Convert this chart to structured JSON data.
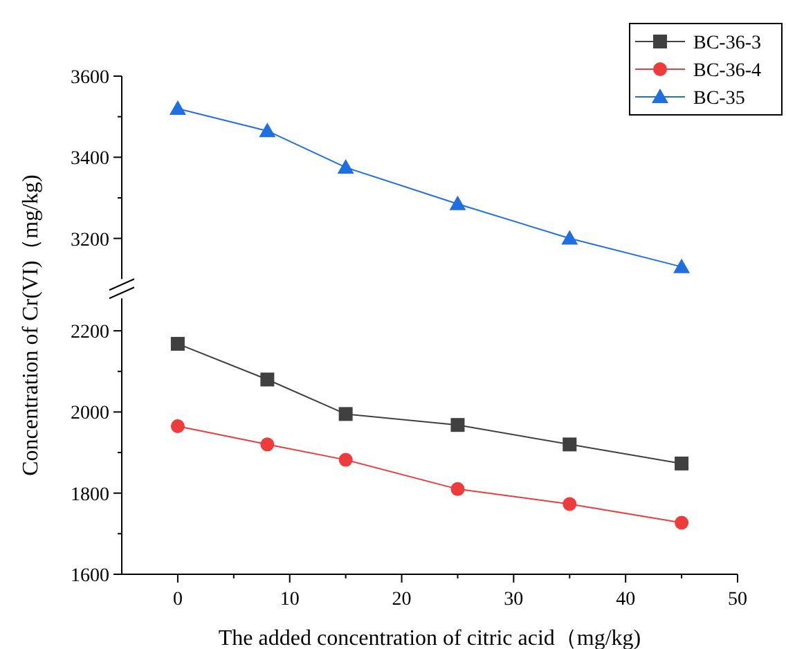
{
  "chart_data": [
    {
      "type": "line",
      "ylabel": "Concentration of Cr(VI)（mg/kg)",
      "x": [
        0,
        8,
        15,
        25,
        35,
        45
      ],
      "xlim": [
        -5,
        50
      ],
      "ylim": [
        3100,
        3600
      ],
      "yticks": [
        3200,
        {
          "value": 3300,
          "label": null
        },
        3400,
        {
          "value": 3500,
          "label": null
        },
        3600
      ],
      "tick_labels": "y",
      "marker": "triangle",
      "legend": "top right",
      "series": [
        {
          "name": "BC-35",
          "color": "#1f6fe0",
          "values": [
            3520,
            3465,
            3375,
            3285,
            3200,
            3130
          ]
        }
      ]
    },
    {
      "type": "line",
      "xlabel": "The added concentration of citric acid（mg/kg)",
      "x": [
        0,
        8,
        15,
        25,
        35,
        45
      ],
      "xlim": [
        -5,
        50
      ],
      "xticks": [
        0,
        {
          "value": 5,
          "label": null
        },
        10,
        {
          "value": 15,
          "label": null
        },
        20,
        {
          "value": 25,
          "label": null
        },
        30,
        {
          "value": 35,
          "label": null
        },
        40,
        {
          "value": 45,
          "label": null
        },
        50
      ],
      "ylim": [
        1600,
        2280
      ],
      "yticks": [
        1600,
        {
          "value": 1700,
          "label": null
        },
        1800,
        {
          "value": 1900,
          "label": null
        },
        2000,
        {
          "value": 2100,
          "label": null
        },
        2200
      ],
      "legend": "top right",
      "series": [
        {
          "name": "BC-36-3",
          "color": "#404040",
          "marker": "square",
          "values": [
            2168,
            2080,
            1995,
            1968,
            1920,
            1873
          ]
        },
        {
          "name": "BC-36-4",
          "color": "#ee3b3b",
          "marker": "circle",
          "values": [
            1965,
            1920,
            1882,
            1810,
            1773,
            1727
          ]
        }
      ]
    }
  ]
}
